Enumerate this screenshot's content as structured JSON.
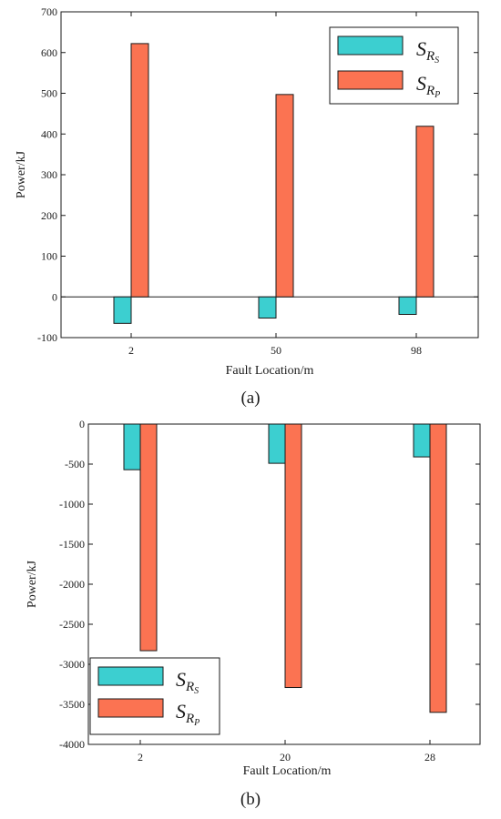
{
  "chart_data": [
    {
      "type": "bar",
      "caption": "(a)",
      "categories": [
        "2",
        "50",
        "98"
      ],
      "series": [
        {
          "name": "S_RS",
          "values": [
            -65,
            -52,
            -43
          ],
          "color": "#3ccfd0"
        },
        {
          "name": "S_RP",
          "values": [
            622,
            497,
            419
          ],
          "color": "#fb7352"
        }
      ],
      "xlabel": "Fault Location/m",
      "ylabel": "Power/kJ",
      "ylim": [
        -100,
        700
      ],
      "yticks": [
        "-100",
        "0",
        "100",
        "200",
        "300",
        "400",
        "500",
        "600",
        "700"
      ],
      "zero_line": true,
      "legend_position": "top-right",
      "grid": false
    },
    {
      "type": "bar",
      "caption": "(b)",
      "categories": [
        "2",
        "20",
        "28"
      ],
      "series": [
        {
          "name": "S_RS",
          "values": [
            -570,
            -490,
            -410
          ],
          "color": "#3ccfd0"
        },
        {
          "name": "S_RP",
          "values": [
            -2830,
            -3290,
            -3600
          ],
          "color": "#fb7352"
        }
      ],
      "xlabel": "Fault Location/m",
      "ylabel": "Power/kJ",
      "ylim": [
        -4000,
        0
      ],
      "yticks": [
        "0",
        "-500",
        "-1000",
        "-1500",
        "-2000",
        "-2500",
        "-3000",
        "-3500",
        "-4000"
      ],
      "zero_line": false,
      "legend_position": "bottom-left",
      "grid": false
    }
  ],
  "legend_labels": {
    "S": "S",
    "R": "R",
    "sub_s": "S",
    "sub_p": "P"
  },
  "colors": {
    "rs": "#3ccfd0",
    "rp": "#fb7352",
    "axis": "#1a1a1a"
  }
}
